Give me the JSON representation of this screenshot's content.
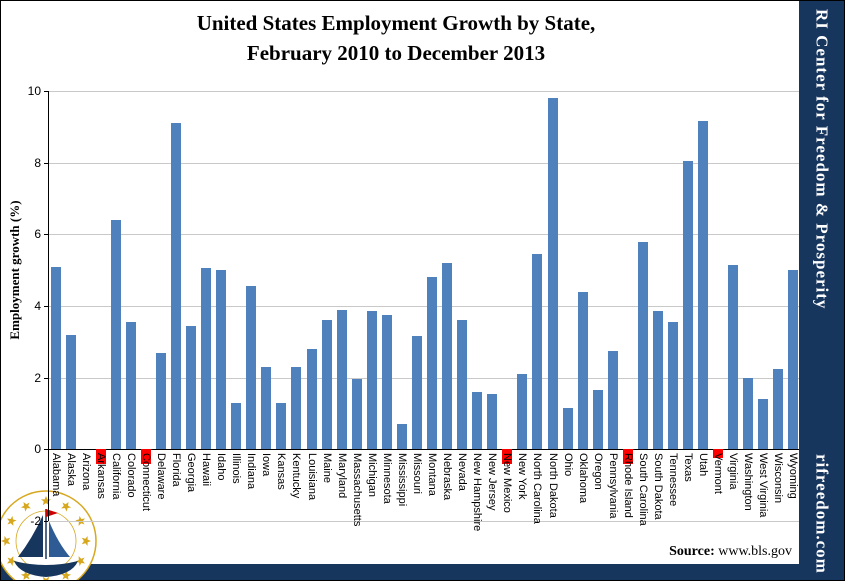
{
  "title": {
    "line1": "United States Employment Growth by State,",
    "line2": "February 2010 to December 2013"
  },
  "y_axis": {
    "label": "Employment growth (%)"
  },
  "source": {
    "label": "Source:",
    "value": "www.bls.gov"
  },
  "sidebar": {
    "brand": "RI Center for Freedom & Prosperity",
    "site": "rifreedom.com"
  },
  "colors": {
    "bar": "#4F81BD",
    "negative_bar": "#FF0000",
    "sidebar_bg": "#17365D",
    "gridline": "#C9C9C9",
    "logo_gold": "#D7A81F",
    "logo_navy": "#17365D"
  },
  "chart_data": {
    "type": "bar",
    "title": "United States Employment Growth by State, February 2010 to December 2013",
    "xlabel": "",
    "ylabel": "Employment growth (%)",
    "ylim": [
      -2,
      10
    ],
    "yticks": [
      10,
      8,
      6,
      4,
      2,
      0,
      -2
    ],
    "grid": true,
    "legend": "none",
    "bar_color": "#4F81BD",
    "negative_bar_color": "#FF0000",
    "red_states": [
      "Arkansas",
      "Connecticut",
      "New Mexico",
      "Rhode Island",
      "Vermont"
    ],
    "categories": [
      "Alabama",
      "Alaska",
      "Arizona",
      "Arkansas",
      "California",
      "Colorado",
      "Connecticut",
      "Delaware",
      "Florida",
      "Georgia",
      "Hawaii",
      "Idaho",
      "Illinois",
      "Indiana",
      "Iowa",
      "Kansas",
      "Kentucky",
      "Louisiana",
      "Maine",
      "Maryland",
      "Massachusetts",
      "Michigan",
      "Minnesota",
      "Mississippi",
      "Missouri",
      "Montana",
      "Nebraska",
      "Nevada",
      "New Hampshire",
      "New Jersey",
      "New Mexico",
      "New York",
      "North Carolina",
      "North Dakota",
      "Ohio",
      "Oklahoma",
      "Oregon",
      "Pennsylvania",
      "Rhode Island",
      "South Carolina",
      "South Dakota",
      "Tennessee",
      "Texas",
      "Utah",
      "Vermont",
      "Virginia",
      "Washington",
      "West Virginia",
      "Wisconsin",
      "Wyoming"
    ],
    "values": [
      5.1,
      3.2,
      0,
      -0.4,
      6.4,
      3.55,
      -0.4,
      2.7,
      9.1,
      3.45,
      5.05,
      5.0,
      1.3,
      4.55,
      2.3,
      1.3,
      2.3,
      2.8,
      3.6,
      3.9,
      1.95,
      3.85,
      3.75,
      0.7,
      3.15,
      4.8,
      5.2,
      3.6,
      1.6,
      1.55,
      -0.4,
      2.1,
      5.45,
      9.8,
      1.15,
      4.4,
      1.65,
      2.75,
      -0.4,
      5.8,
      3.85,
      3.55,
      8.05,
      9.15,
      -0.25,
      5.15,
      2.0,
      1.4,
      2.25,
      5.0
    ]
  }
}
